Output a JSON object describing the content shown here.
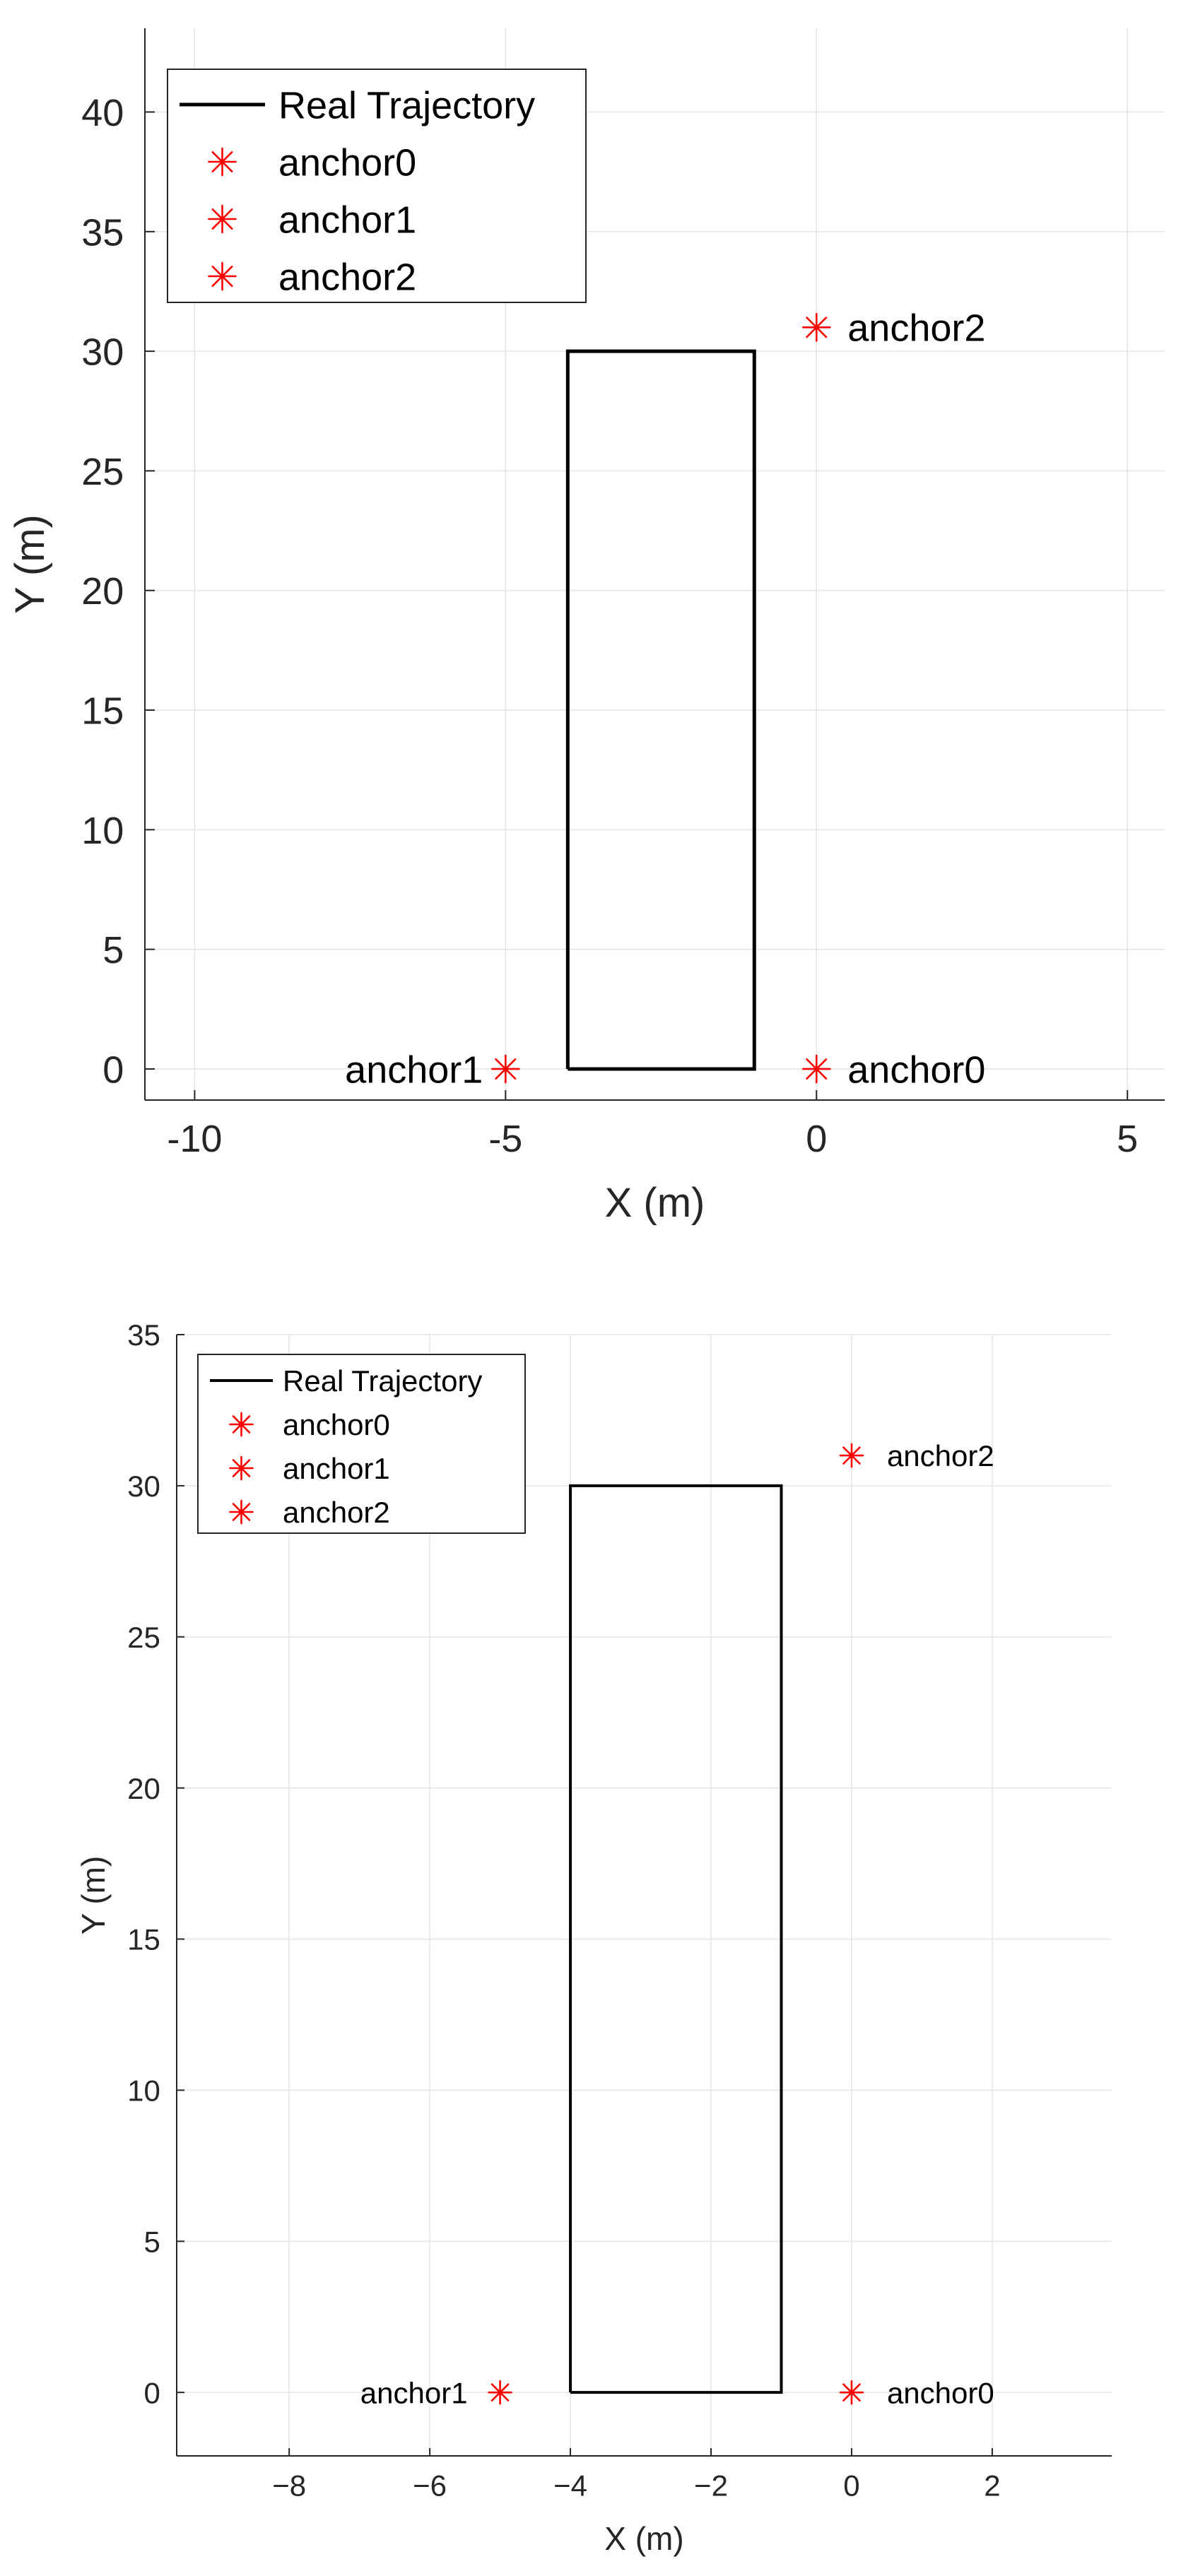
{
  "chart_data": [
    {
      "type": "line",
      "title": "",
      "xlabel": "X (m)",
      "ylabel": "Y (m)",
      "xlim": [
        -10.8,
        5.6
      ],
      "ylim": [
        -1.3,
        43.5
      ],
      "xticks": [
        -10,
        -5,
        0,
        5
      ],
      "yticks": [
        0,
        5,
        10,
        15,
        20,
        25,
        30,
        35,
        40
      ],
      "grid": true,
      "legend_position": "top-left",
      "series": [
        {
          "name": "Real Trajectory",
          "kind": "line",
          "color": "#000000",
          "x": [
            -4,
            -1,
            -1,
            -4,
            -4
          ],
          "y": [
            0,
            0,
            30,
            30,
            0
          ]
        },
        {
          "name": "anchor0",
          "kind": "marker",
          "marker": "asterisk",
          "color": "#ff0000",
          "x": [
            0
          ],
          "y": [
            0
          ]
        },
        {
          "name": "anchor1",
          "kind": "marker",
          "marker": "asterisk",
          "color": "#ff0000",
          "x": [
            -5
          ],
          "y": [
            0
          ]
        },
        {
          "name": "anchor2",
          "kind": "marker",
          "marker": "asterisk",
          "color": "#ff0000",
          "x": [
            0
          ],
          "y": [
            31
          ]
        }
      ],
      "annotations": [
        {
          "text": "anchor0",
          "x": 0,
          "y": 0,
          "side": "right"
        },
        {
          "text": "anchor1",
          "x": -5,
          "y": 0,
          "side": "left"
        },
        {
          "text": "anchor2",
          "x": 0,
          "y": 31,
          "side": "right"
        }
      ]
    },
    {
      "type": "line",
      "title": "",
      "xlabel": "X (m)",
      "ylabel": "Y (m)",
      "xlim": [
        -9.6,
        3.7
      ],
      "ylim": [
        -2.1,
        35
      ],
      "xticks": [
        -8,
        -6,
        -4,
        -2,
        0,
        2
      ],
      "xtick_labels": [
        "−8",
        "−6",
        "−4",
        "−2",
        "0",
        "2"
      ],
      "yticks": [
        0,
        5,
        10,
        15,
        20,
        25,
        30,
        35
      ],
      "grid": true,
      "legend_position": "top-left",
      "series": [
        {
          "name": "Real Trajectory",
          "kind": "line",
          "color": "#000000",
          "x": [
            -4,
            -1,
            -1,
            -4,
            -4
          ],
          "y": [
            0,
            0,
            30,
            30,
            0
          ]
        },
        {
          "name": "anchor0",
          "kind": "marker",
          "marker": "asterisk",
          "color": "#ff0000",
          "x": [
            0
          ],
          "y": [
            0
          ]
        },
        {
          "name": "anchor1",
          "kind": "marker",
          "marker": "asterisk",
          "color": "#ff0000",
          "x": [
            -5
          ],
          "y": [
            0
          ]
        },
        {
          "name": "anchor2",
          "kind": "marker",
          "marker": "asterisk",
          "color": "#ff0000",
          "x": [
            0
          ],
          "y": [
            31
          ]
        }
      ],
      "annotations": [
        {
          "text": "anchor0",
          "x": 0,
          "y": 0,
          "side": "right"
        },
        {
          "text": "anchor1",
          "x": -5,
          "y": 0,
          "side": "left"
        },
        {
          "text": "anchor2",
          "x": 0,
          "y": 31,
          "side": "right"
        }
      ]
    }
  ]
}
